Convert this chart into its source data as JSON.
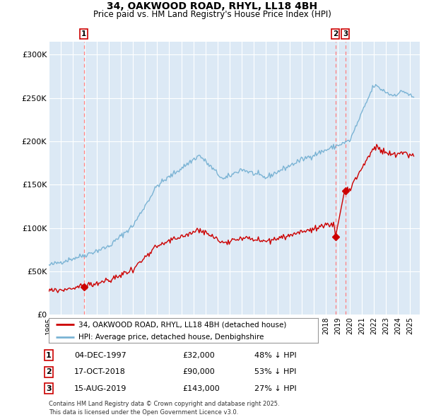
{
  "title1": "34, OAKWOOD ROAD, RHYL, LL18 4BH",
  "title2": "Price paid vs. HM Land Registry's House Price Index (HPI)",
  "ylabel_ticks": [
    "£0",
    "£50K",
    "£100K",
    "£150K",
    "£200K",
    "£250K",
    "£300K"
  ],
  "ytick_values": [
    0,
    50000,
    100000,
    150000,
    200000,
    250000,
    300000
  ],
  "ylim": [
    0,
    315000
  ],
  "xlim_start": 1995.0,
  "xlim_end": 2025.8,
  "sale1_date": 1997.92,
  "sale1_price": 32000,
  "sale2_date": 2018.79,
  "sale2_price": 90000,
  "sale3_date": 2019.62,
  "sale3_price": 143000,
  "legend_line1": "34, OAKWOOD ROAD, RHYL, LL18 4BH (detached house)",
  "legend_line2": "HPI: Average price, detached house, Denbighshire",
  "table_rows": [
    [
      "1",
      "04-DEC-1997",
      "£32,000",
      "48% ↓ HPI"
    ],
    [
      "2",
      "17-OCT-2018",
      "£90,000",
      "53% ↓ HPI"
    ],
    [
      "3",
      "15-AUG-2019",
      "£143,000",
      "27% ↓ HPI"
    ]
  ],
  "footnote": "Contains HM Land Registry data © Crown copyright and database right 2025.\nThis data is licensed under the Open Government Licence v3.0.",
  "hpi_color": "#7ab3d4",
  "price_color": "#cc0000",
  "bg_color": "#dce9f5",
  "grid_color": "#ffffff",
  "vline_color": "#ff8080",
  "box_edge_color": "#cc0000"
}
